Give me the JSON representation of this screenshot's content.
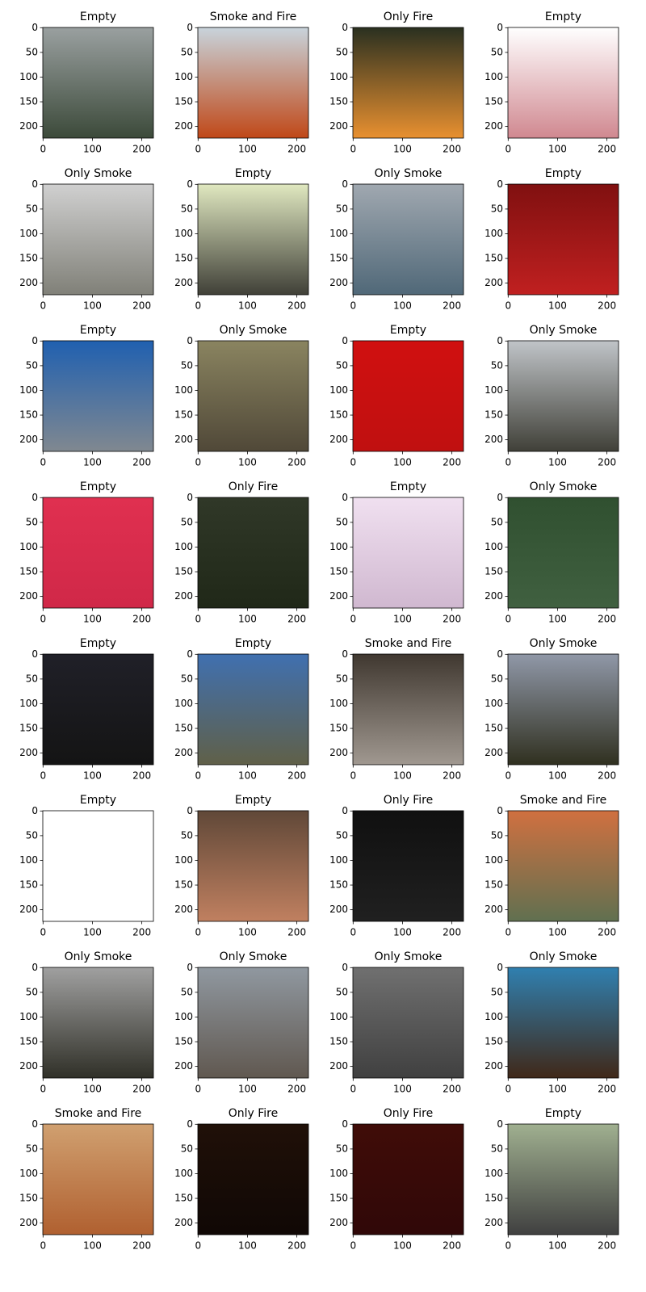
{
  "panels": [
    {
      "title": "Empty"
    },
    {
      "title": "Smoke and Fire"
    },
    {
      "title": "Only Fire"
    },
    {
      "title": "Empty"
    },
    {
      "title": "Only Smoke"
    },
    {
      "title": "Empty"
    },
    {
      "title": "Only Smoke"
    },
    {
      "title": "Empty"
    },
    {
      "title": "Empty"
    },
    {
      "title": "Only Smoke"
    },
    {
      "title": "Empty"
    },
    {
      "title": "Only Smoke"
    },
    {
      "title": "Empty"
    },
    {
      "title": "Only Fire"
    },
    {
      "title": "Empty"
    },
    {
      "title": "Only Smoke"
    },
    {
      "title": "Empty"
    },
    {
      "title": "Empty"
    },
    {
      "title": "Smoke and Fire"
    },
    {
      "title": "Only Smoke"
    },
    {
      "title": "Empty"
    },
    {
      "title": "Empty"
    },
    {
      "title": "Only Fire"
    },
    {
      "title": "Smoke and Fire"
    },
    {
      "title": "Only Smoke"
    },
    {
      "title": "Only Smoke"
    },
    {
      "title": "Only Smoke"
    },
    {
      "title": "Only Smoke"
    },
    {
      "title": "Smoke and Fire"
    },
    {
      "title": "Only Fire"
    },
    {
      "title": "Only Fire"
    },
    {
      "title": "Empty"
    }
  ],
  "xlim": [
    -0.5,
    223.5
  ],
  "ylim": [
    223.5,
    -0.5
  ],
  "xticks": [
    0,
    100,
    200
  ],
  "yticks": [
    0,
    50,
    100,
    150,
    200
  ]
}
